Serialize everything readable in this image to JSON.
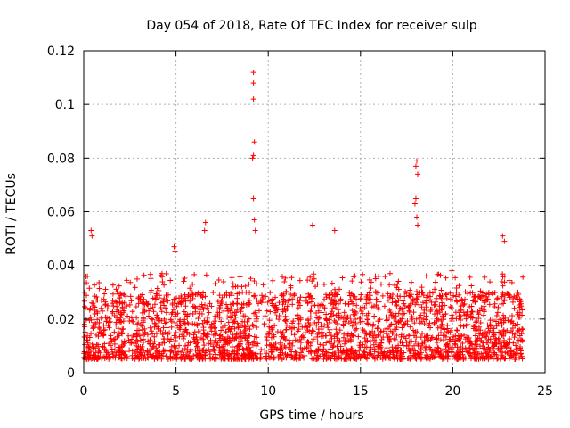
{
  "chart_data": {
    "type": "scatter",
    "title": "Day 054 of 2018, Rate Of TEC Index for receiver sulp",
    "xlabel": "GPS time / hours",
    "ylabel": "ROTI / TECUs",
    "xlim": [
      0,
      25
    ],
    "ylim": [
      0,
      0.12
    ],
    "grid": true,
    "marker": "+",
    "xticks": [
      0,
      5,
      10,
      15,
      20,
      25
    ],
    "yticks": [
      0,
      0.02,
      0.04,
      0.06,
      0.08,
      0.1,
      0.12
    ],
    "xtick_labels": [
      "0",
      "5",
      "10",
      "15",
      "20",
      "25"
    ],
    "ytick_labels": [
      "0",
      "0.02",
      "0.04",
      "0.06",
      "0.08",
      "0.1",
      "0.12"
    ],
    "colors": {
      "points": "#ff0000",
      "grid": "#b0b0b0",
      "axes": "#000000"
    },
    "data_coverage_hours": [
      0,
      23.8
    ],
    "baseline_band": [
      0.005,
      0.025
    ],
    "series": [
      {
        "name": "ROTI",
        "notable_points": [
          {
            "x": 9.2,
            "y": 0.112
          },
          {
            "x": 9.2,
            "y": 0.108
          },
          {
            "x": 9.2,
            "y": 0.102
          },
          {
            "x": 9.25,
            "y": 0.086
          },
          {
            "x": 9.2,
            "y": 0.081
          },
          {
            "x": 9.15,
            "y": 0.08
          },
          {
            "x": 9.2,
            "y": 0.065
          },
          {
            "x": 9.25,
            "y": 0.057
          },
          {
            "x": 9.3,
            "y": 0.053
          },
          {
            "x": 18.05,
            "y": 0.079
          },
          {
            "x": 18.0,
            "y": 0.077
          },
          {
            "x": 18.1,
            "y": 0.074
          },
          {
            "x": 18.0,
            "y": 0.065
          },
          {
            "x": 17.95,
            "y": 0.063
          },
          {
            "x": 18.05,
            "y": 0.058
          },
          {
            "x": 18.1,
            "y": 0.055
          },
          {
            "x": 0.4,
            "y": 0.053
          },
          {
            "x": 0.45,
            "y": 0.051
          },
          {
            "x": 6.6,
            "y": 0.056
          },
          {
            "x": 6.55,
            "y": 0.053
          },
          {
            "x": 12.4,
            "y": 0.055
          },
          {
            "x": 13.6,
            "y": 0.053
          },
          {
            "x": 22.7,
            "y": 0.051
          },
          {
            "x": 22.8,
            "y": 0.049
          },
          {
            "x": 4.9,
            "y": 0.047
          },
          {
            "x": 4.95,
            "y": 0.045
          },
          {
            "x": 0.2,
            "y": 0.036
          },
          {
            "x": 8.6,
            "y": 0.03
          },
          {
            "x": 19.95,
            "y": 0.038
          }
        ]
      }
    ]
  }
}
